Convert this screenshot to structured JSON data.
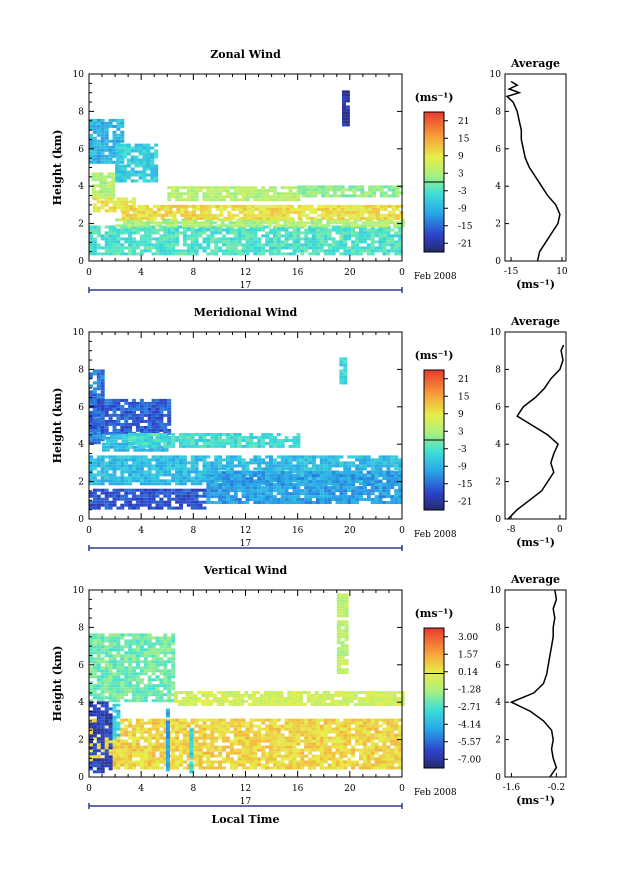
{
  "chart_data": [
    {
      "type": "heatmap",
      "title": "Zonal Wind",
      "xlabel": "",
      "ylabel": "Height (km)",
      "x_ticks": [
        "0",
        "4",
        "8",
        "12",
        "16",
        "20",
        "0"
      ],
      "y_ticks": [
        "0",
        "2",
        "4",
        "6",
        "8",
        "10"
      ],
      "xlim": [
        0,
        24
      ],
      "ylim": [
        0,
        10
      ],
      "date_marker": "17",
      "date_label": "Feb 2008",
      "colorbar": {
        "unit": "(ms⁻¹)",
        "ticks": [
          "21",
          "15",
          "9",
          "3",
          "-3",
          "-9",
          "-15",
          "-21"
        ],
        "min": -24,
        "max": 24
      },
      "regions": [
        {
          "x0": 0.0,
          "x1": 2.5,
          "y0": 5.2,
          "y1": 7.6,
          "v": -9
        },
        {
          "x0": 2.0,
          "x1": 5.0,
          "y0": 4.2,
          "y1": 6.2,
          "v": -6
        },
        {
          "x0": 0.2,
          "x1": 2.0,
          "y0": 3.3,
          "y1": 4.6,
          "v": 3
        },
        {
          "x0": 0.3,
          "x1": 3.5,
          "y0": 2.6,
          "y1": 3.3,
          "v": 9
        },
        {
          "x0": 0.0,
          "x1": 24,
          "y0": 0.3,
          "y1": 1.8,
          "v": -3
        },
        {
          "x0": 2.0,
          "x1": 24,
          "y0": 1.8,
          "y1": 2.2,
          "v": 3
        },
        {
          "x0": 2.5,
          "x1": 24,
          "y0": 2.2,
          "y1": 2.9,
          "v": 10
        },
        {
          "x0": 6.0,
          "x1": 16,
          "y0": 3.2,
          "y1": 4.0,
          "v": 4
        },
        {
          "x0": 16.0,
          "x1": 24,
          "y0": 3.4,
          "y1": 3.9,
          "v": 1
        },
        {
          "x0": 19.4,
          "x1": 19.8,
          "y0": 7.2,
          "y1": 9.1,
          "v": -20
        }
      ],
      "average_profile": {
        "title": "Average",
        "xlabel": "(ms⁻¹)",
        "x_ticks": [
          "-15",
          "10"
        ],
        "y_ticks": [
          "0",
          "2",
          "4",
          "6",
          "8",
          "10"
        ],
        "xlim": [
          -18,
          12
        ],
        "z": [
          0.0,
          0.5,
          1.0,
          1.5,
          2.0,
          2.5,
          3.0,
          3.5,
          4.0,
          4.5,
          5.0,
          5.5,
          6.0,
          6.5,
          7.0,
          7.5,
          8.0,
          8.5,
          8.8,
          9.0,
          9.2,
          9.4,
          9.6
        ],
        "v": [
          -2,
          -1,
          2,
          5,
          8,
          9,
          7,
          3,
          0,
          -3,
          -6,
          -8,
          -9,
          -10,
          -10,
          -11,
          -12,
          -14,
          -17,
          -11,
          -16,
          -12,
          -15
        ]
      }
    },
    {
      "type": "heatmap",
      "title": "Meridional Wind",
      "xlabel": "",
      "ylabel": "Height (km)",
      "x_ticks": [
        "0",
        "4",
        "8",
        "12",
        "16",
        "20",
        "0"
      ],
      "y_ticks": [
        "0",
        "2",
        "4",
        "6",
        "8",
        "10"
      ],
      "xlim": [
        0,
        24
      ],
      "ylim": [
        0,
        10
      ],
      "date_marker": "17",
      "date_label": "Feb 2008",
      "colorbar": {
        "unit": "(ms⁻¹)",
        "ticks": [
          "21",
          "15",
          "9",
          "3",
          "-3",
          "-9",
          "-15",
          "-21"
        ],
        "min": -24,
        "max": 24
      },
      "regions": [
        {
          "x0": 0.0,
          "x1": 1.2,
          "y0": 4.0,
          "y1": 8.0,
          "v": -14
        },
        {
          "x0": 0.0,
          "x1": 6.0,
          "y0": 4.5,
          "y1": 6.3,
          "v": -16
        },
        {
          "x0": 1.0,
          "x1": 6.0,
          "y0": 3.6,
          "y1": 4.5,
          "v": -8
        },
        {
          "x0": 0.0,
          "x1": 24,
          "y0": 1.8,
          "y1": 3.3,
          "v": -8
        },
        {
          "x0": 3.0,
          "x1": 16,
          "y0": 3.8,
          "y1": 4.6,
          "v": -4
        },
        {
          "x0": 0.0,
          "x1": 9.0,
          "y0": 0.5,
          "y1": 1.5,
          "v": -17
        },
        {
          "x0": 9.0,
          "x1": 24,
          "y0": 0.8,
          "y1": 2.5,
          "v": -11
        },
        {
          "x0": 19.2,
          "x1": 19.6,
          "y0": 7.2,
          "y1": 8.5,
          "v": -5
        }
      ],
      "average_profile": {
        "title": "Average",
        "xlabel": "(ms⁻¹)",
        "x_ticks": [
          "-8",
          "0"
        ],
        "y_ticks": [
          "0",
          "2",
          "4",
          "6",
          "8",
          "10"
        ],
        "xlim": [
          -9,
          1
        ],
        "z": [
          0.0,
          0.5,
          1.0,
          1.5,
          2.0,
          2.5,
          3.0,
          3.5,
          4.0,
          4.5,
          5.0,
          5.5,
          6.0,
          6.5,
          7.0,
          7.5,
          8.0,
          8.5,
          9.0,
          9.3
        ],
        "v": [
          -8.5,
          -7,
          -5,
          -3,
          -2,
          -1,
          -1.5,
          -1,
          -0.3,
          -2,
          -4.5,
          -7,
          -6,
          -4,
          -2.5,
          -1.5,
          0,
          0.5,
          0.2,
          0.6
        ]
      }
    },
    {
      "type": "heatmap",
      "title": "Vertical Wind",
      "xlabel": "Local Time",
      "ylabel": "Height (km)",
      "x_ticks": [
        "0",
        "4",
        "8",
        "12",
        "16",
        "20",
        "0"
      ],
      "y_ticks": [
        "0",
        "2",
        "4",
        "6",
        "8",
        "10"
      ],
      "xlim": [
        0,
        24
      ],
      "ylim": [
        0,
        10
      ],
      "date_marker": "17",
      "date_label": "Feb 2008",
      "colorbar": {
        "unit": "(ms⁻¹)",
        "ticks": [
          "3.00",
          "1.57",
          "0.14",
          "-1.28",
          "-2.71",
          "-4.14",
          "-5.57",
          "-7.00"
        ],
        "min": -7.7,
        "max": 3.7
      },
      "regions": [
        {
          "x0": 0.0,
          "x1": 24,
          "y0": 0.4,
          "y1": 3.0,
          "v": 0.6
        },
        {
          "x0": 0.0,
          "x1": 6.5,
          "y0": 4.0,
          "y1": 7.6,
          "v": -2.2
        },
        {
          "x0": 6.5,
          "x1": 24,
          "y0": 3.8,
          "y1": 4.6,
          "v": -0.5
        },
        {
          "x0": 0.0,
          "x1": 1.8,
          "y0": 0.2,
          "y1": 4.0,
          "v": -6.5
        },
        {
          "x0": 1.8,
          "x1": 2.4,
          "y0": 2.0,
          "y1": 3.8,
          "v": -3.5
        },
        {
          "x0": 5.9,
          "x1": 6.2,
          "y0": 0.3,
          "y1": 3.7,
          "v": -4.5
        },
        {
          "x0": 7.7,
          "x1": 7.9,
          "y0": 0.2,
          "y1": 2.5,
          "v": -3.5
        },
        {
          "x0": 19.0,
          "x1": 19.8,
          "y0": 5.5,
          "y1": 9.8,
          "v": -1.0
        }
      ],
      "average_profile": {
        "title": "Average",
        "xlabel": "(ms⁻¹)",
        "x_ticks": [
          "-1.6",
          "-0.2"
        ],
        "y_ticks": [
          "0",
          "2",
          "4",
          "6",
          "8",
          "10"
        ],
        "xlim": [
          -1.8,
          0.1
        ],
        "z": [
          0.0,
          0.5,
          1.0,
          1.5,
          2.0,
          2.5,
          3.0,
          3.5,
          4.0,
          4.5,
          5.0,
          5.5,
          6.0,
          6.5,
          7.0,
          7.5,
          8.0,
          8.5,
          9.0,
          9.5,
          10.0
        ],
        "v": [
          -0.4,
          -0.2,
          -0.3,
          -0.35,
          -0.3,
          -0.35,
          -0.6,
          -1.0,
          -1.6,
          -0.9,
          -0.6,
          -0.5,
          -0.45,
          -0.4,
          -0.35,
          -0.3,
          -0.3,
          -0.25,
          -0.3,
          -0.2,
          -0.25
        ]
      }
    }
  ]
}
